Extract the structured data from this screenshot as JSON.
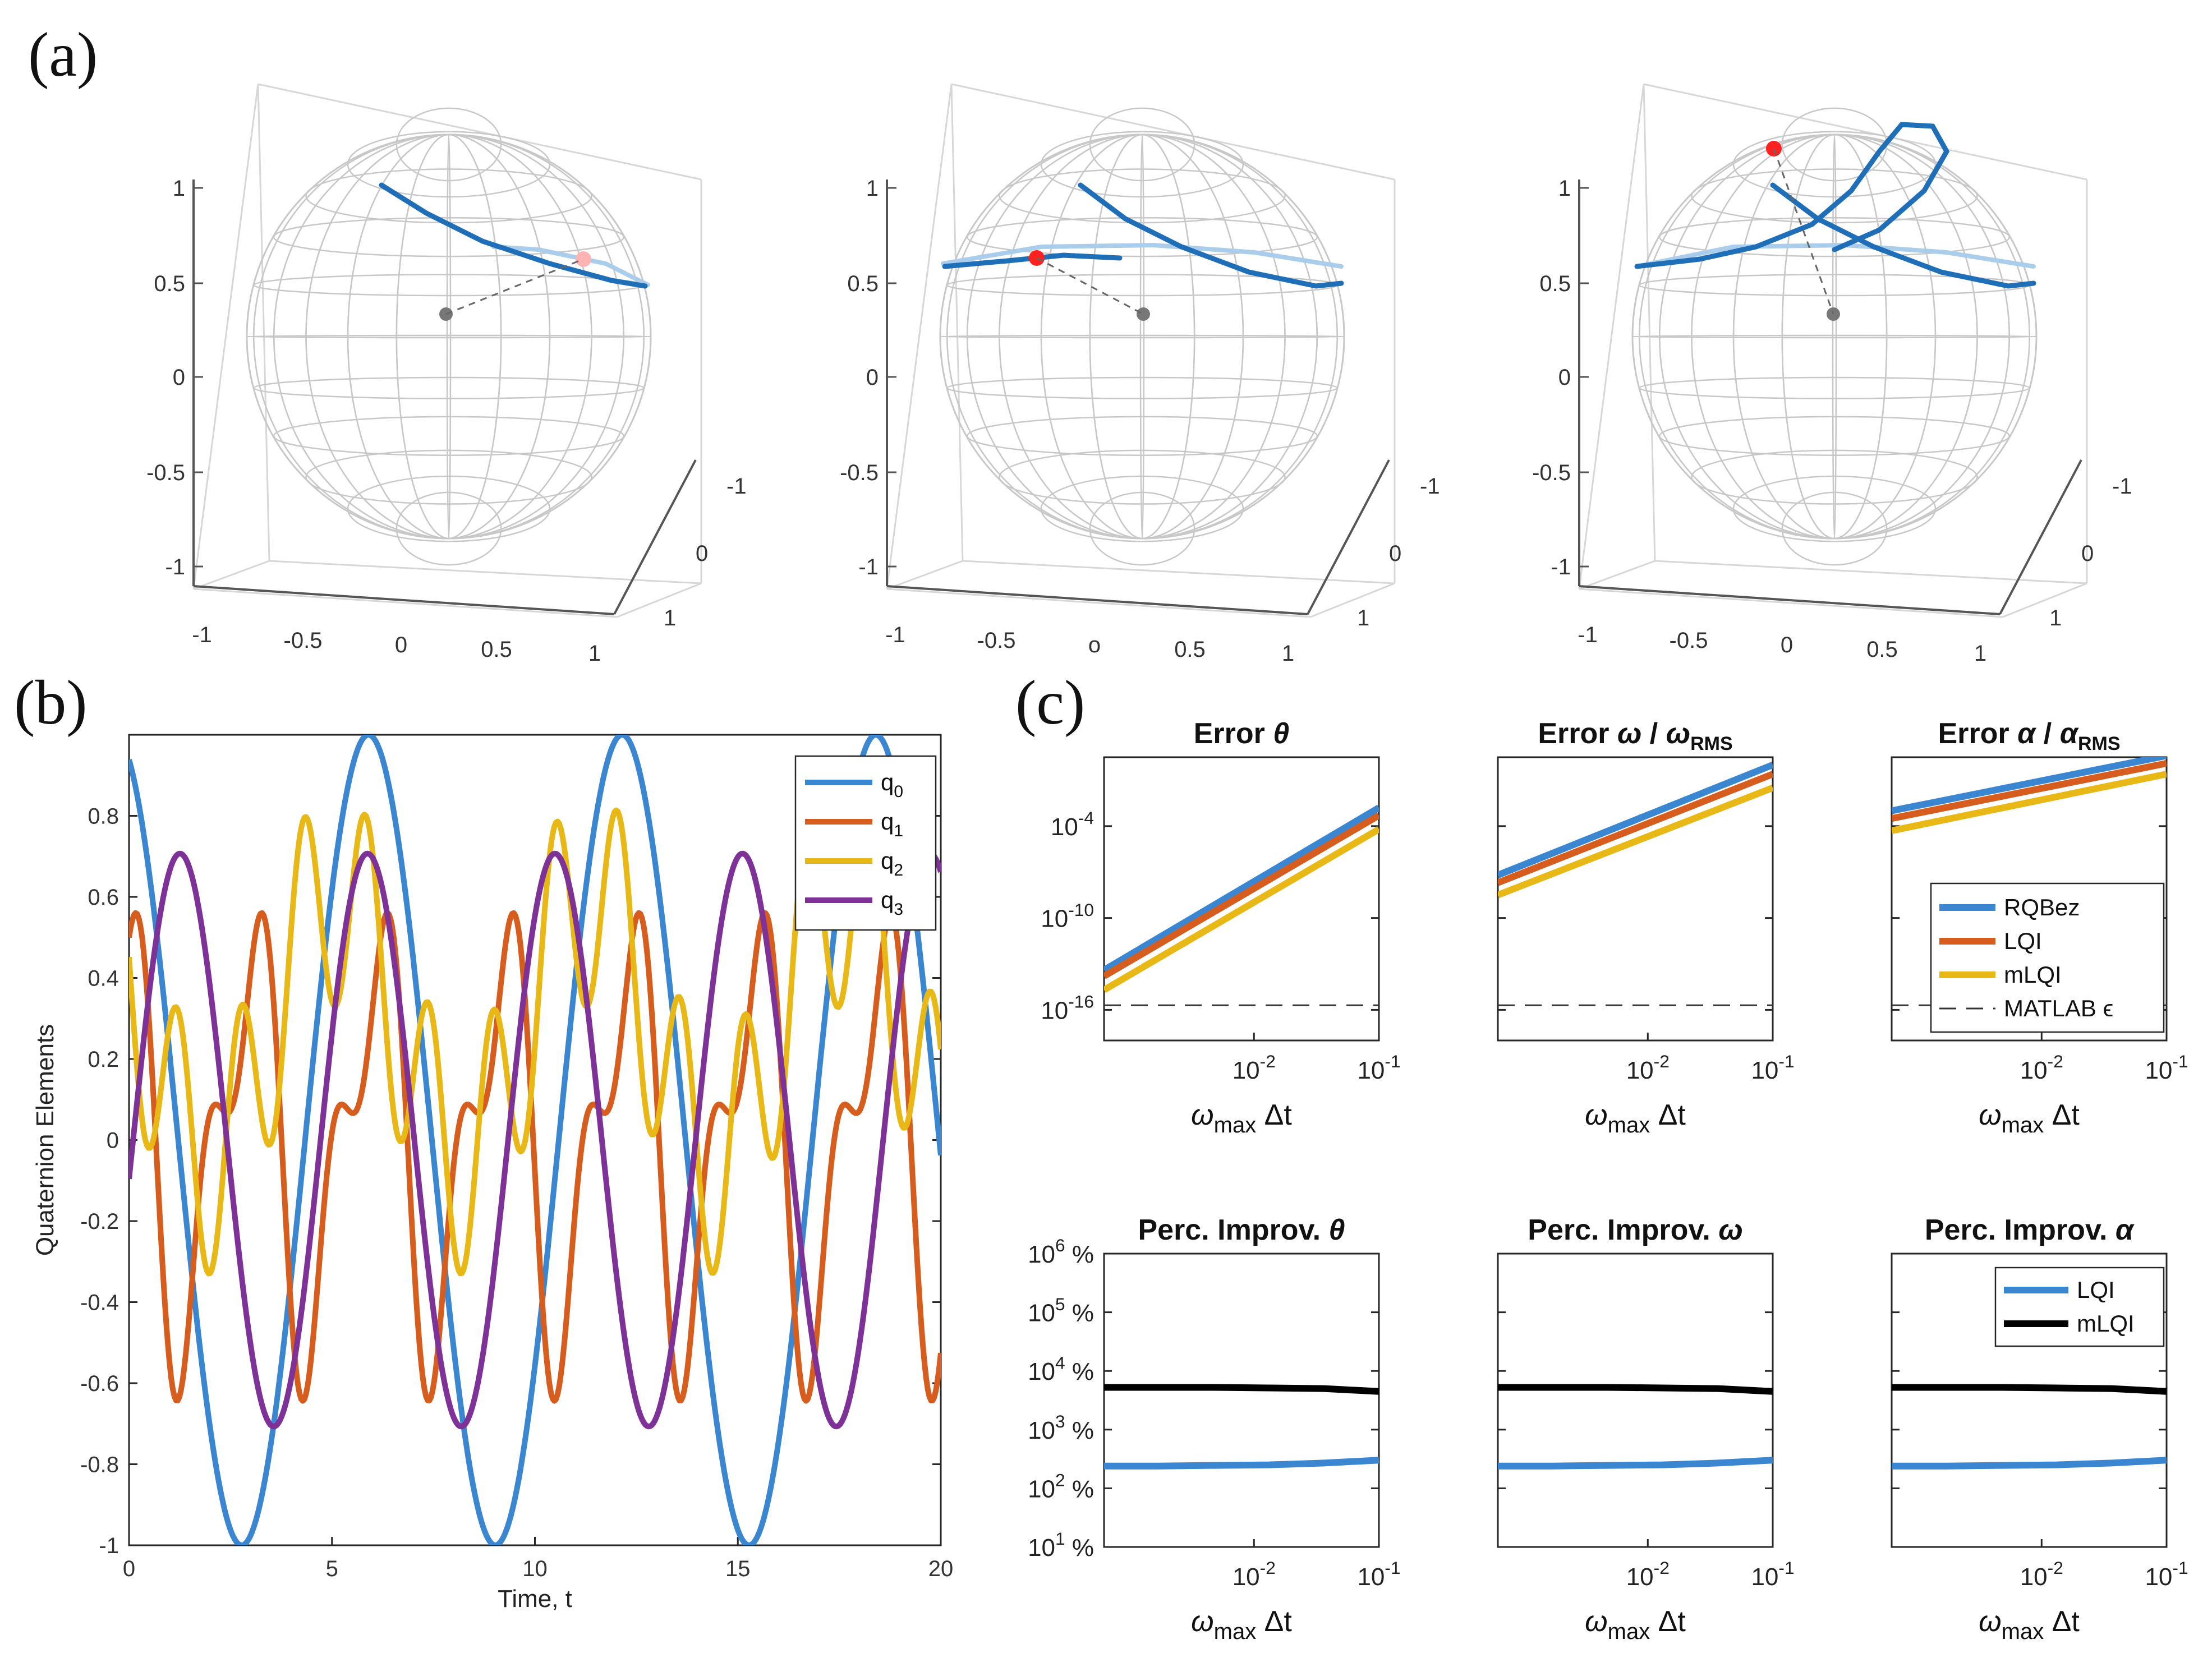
{
  "panel_labels": {
    "a": "(a)",
    "b": "(b)",
    "c": "(c)"
  },
  "colors": {
    "q0": "#3b86d0",
    "q1": "#d65d1e",
    "q2": "#e8b816",
    "q3": "#7e3196",
    "rqbez": "#3b86d0",
    "lqi": "#d65d1e",
    "mlqi": "#e8b816",
    "black": "#000000",
    "path_front": "#1f6fb8",
    "path_back": "#a9cdea",
    "grid": "#c8c8c8"
  },
  "chart_data": [
    {
      "id": "a-spheres",
      "type": "scatter",
      "title": "",
      "view": "3d unit sphere wireframe with trajectory",
      "ticks_z": [
        "1",
        "0.5",
        "0",
        "-0.5",
        "-1"
      ],
      "ticks_x": [
        "-1",
        "-0.5",
        "0",
        "0.5",
        "1"
      ],
      "ticks_y": [
        "-1",
        "0",
        "1"
      ],
      "middle_ticks_x": [
        "-1",
        "-0.5",
        "0",
        "0.5",
        "1"
      ],
      "middle_ticks_x_center": "o"
    },
    {
      "id": "b-quaternion",
      "type": "line",
      "xlabel": "Time, t",
      "ylabel": "Quaternion Elements",
      "xlim": [
        0,
        20
      ],
      "ylim": [
        -1,
        1
      ],
      "xticks": [
        "0",
        "5",
        "10",
        "15",
        "20"
      ],
      "yticks": [
        "-1",
        "-0.8",
        "-0.6",
        "-0.4",
        "-0.2",
        "0",
        "0.2",
        "0.4",
        "0.6",
        "0.8"
      ],
      "legend_position": "top-right",
      "series": [
        {
          "name": "q",
          "sub": "0",
          "key": "q0"
        },
        {
          "name": "q",
          "sub": "1",
          "key": "q1"
        },
        {
          "name": "q",
          "sub": "2",
          "key": "q2"
        },
        {
          "name": "q",
          "sub": "3",
          "key": "q3"
        }
      ]
    },
    {
      "id": "c-error",
      "type": "line",
      "scale": "log-log",
      "xlabel": "ω",
      "xlabel_sub": "max",
      "xlabel_tail": " Δt",
      "xticks": [
        {
          "base": "10",
          "exp": "-2"
        },
        {
          "base": "10",
          "exp": "-1"
        }
      ],
      "yticks": [
        {
          "base": "10",
          "exp": "-4"
        },
        {
          "base": "10",
          "exp": "-10"
        },
        {
          "base": "10",
          "exp": "-16"
        }
      ],
      "titles": [
        {
          "text": "Error ",
          "sym": "θ",
          "tail": "",
          "sub": ""
        },
        {
          "text": "Error ",
          "sym": "ω",
          "tail": " / ",
          "sym2": "ω",
          "sub": "RMS"
        },
        {
          "text": "Error ",
          "sym": "α",
          "tail": " / ",
          "sym2": "α",
          "sub": "RMS"
        }
      ],
      "legend": [
        "RQBez",
        "LQI",
        "mLQI",
        "MATLAB ϵ"
      ],
      "legend_position": "lower-right of third panel",
      "x_range_log10": [
        -3.2,
        -1
      ],
      "y_range_log10": [
        -18,
        0.5
      ],
      "matlab_eps_log10": -15.7,
      "series": [
        {
          "name": "RQBez",
          "panel": 1,
          "log10_y_at_xmin": -13.4,
          "log10_y_at_xmax": -2.8
        },
        {
          "name": "LQI",
          "panel": 1,
          "log10_y_at_xmin": -13.8,
          "log10_y_at_xmax": -3.3
        },
        {
          "name": "mLQI",
          "panel": 1,
          "log10_y_at_xmin": -14.7,
          "log10_y_at_xmax": -4.2
        },
        {
          "name": "RQBez",
          "panel": 2,
          "log10_y_at_xmin": -7.2,
          "log10_y_at_xmax": 0.0
        },
        {
          "name": "LQI",
          "panel": 2,
          "log10_y_at_xmin": -7.7,
          "log10_y_at_xmax": -0.6
        },
        {
          "name": "mLQI",
          "panel": 2,
          "log10_y_at_xmin": -8.5,
          "log10_y_at_xmax": -1.5
        },
        {
          "name": "RQBez",
          "panel": 3,
          "log10_y_at_xmin": -3.0,
          "log10_y_at_xmax": 0.6
        },
        {
          "name": "LQI",
          "panel": 3,
          "log10_y_at_xmin": -3.5,
          "log10_y_at_xmax": 0.1
        },
        {
          "name": "mLQI",
          "panel": 3,
          "log10_y_at_xmin": -4.3,
          "log10_y_at_xmax": -0.6
        }
      ]
    },
    {
      "id": "c-improvement",
      "type": "line",
      "scale": "log-log",
      "xlabel": "ω",
      "xlabel_sub": "max",
      "xlabel_tail": " Δt",
      "xticks": [
        {
          "base": "10",
          "exp": "-2"
        },
        {
          "base": "10",
          "exp": "-1"
        }
      ],
      "yticks": [
        {
          "base": "10",
          "exp": "6",
          "unit": " %"
        },
        {
          "base": "10",
          "exp": "5",
          "unit": " %"
        },
        {
          "base": "10",
          "exp": "4",
          "unit": " %"
        },
        {
          "base": "10",
          "exp": "3",
          "unit": " %"
        },
        {
          "base": "10",
          "exp": "2",
          "unit": " %"
        },
        {
          "base": "10",
          "exp": "1",
          "unit": " %"
        }
      ],
      "titles": [
        {
          "text": "Perc. Improv. ",
          "sym": "θ"
        },
        {
          "text": "Perc. Improv. ",
          "sym": "ω"
        },
        {
          "text": "Perc. Improv. ",
          "sym": "α"
        }
      ],
      "legend": [
        "LQI",
        "mLQI"
      ],
      "legend_position": "top-right of third panel",
      "x_range_log10": [
        -3.2,
        -1
      ],
      "y_range_log10": [
        1,
        6
      ],
      "series": [
        {
          "name": "LQI",
          "log10_values": [
            2.38,
            2.38,
            2.39,
            2.4,
            2.43,
            2.48
          ]
        },
        {
          "name": "mLQI",
          "log10_values": [
            3.72,
            3.72,
            3.72,
            3.71,
            3.7,
            3.65
          ]
        }
      ]
    }
  ]
}
